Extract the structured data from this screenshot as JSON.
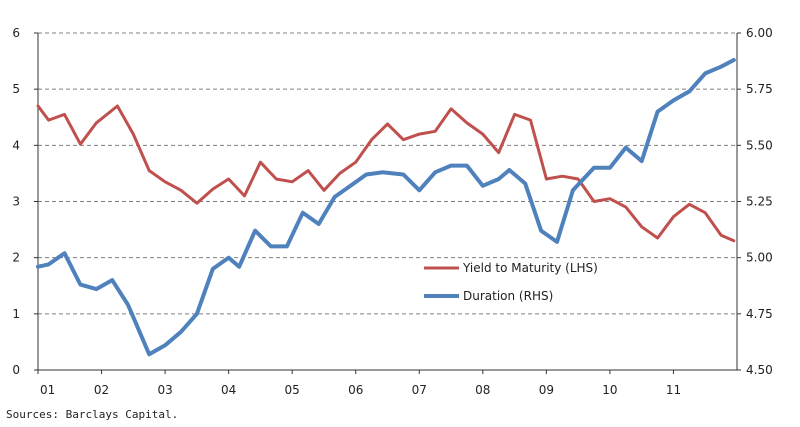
{
  "chart_data": {
    "type": "line",
    "x_ticks": [
      "01",
      "02",
      "03",
      "04",
      "05",
      "06",
      "07",
      "08",
      "09",
      "10",
      "11"
    ],
    "y_left": {
      "ticks": [
        "0",
        "1",
        "2",
        "3",
        "4",
        "5",
        "6"
      ],
      "range": [
        0,
        6
      ]
    },
    "y_right": {
      "ticks": [
        "4.50",
        "4.75",
        "5.00",
        "5.25",
        "5.50",
        "5.75",
        "6.00"
      ],
      "range": [
        4.5,
        6.0
      ]
    },
    "x_range": [
      2001.0,
      2012.0
    ],
    "grid": "horizontal dashed",
    "legend_position": "center-right",
    "series": [
      {
        "name": "Yield to Maturity (LHS)",
        "axis": "left",
        "color": "#c0504d",
        "x": [
          2001.0,
          2001.167,
          2001.417,
          2001.667,
          2001.917,
          2002.25,
          2002.5,
          2002.75,
          2003.0,
          2003.25,
          2003.5,
          2003.75,
          2004.0,
          2004.25,
          2004.5,
          2004.75,
          2005.0,
          2005.25,
          2005.5,
          2005.75,
          2006.0,
          2006.25,
          2006.5,
          2006.75,
          2007.0,
          2007.25,
          2007.5,
          2007.75,
          2008.0,
          2008.25,
          2008.5,
          2008.75,
          2009.0,
          2009.25,
          2009.5,
          2009.75,
          2010.0,
          2010.25,
          2010.5,
          2010.75,
          2011.0,
          2011.25,
          2011.5,
          2011.75,
          2011.95
        ],
        "values": [
          4.7,
          4.45,
          4.55,
          4.02,
          4.4,
          4.7,
          4.2,
          3.55,
          3.35,
          3.2,
          2.97,
          3.22,
          3.4,
          3.1,
          3.7,
          3.4,
          3.35,
          3.55,
          3.2,
          3.5,
          3.7,
          4.1,
          4.38,
          4.1,
          4.2,
          4.25,
          4.65,
          4.4,
          4.2,
          3.87,
          4.55,
          4.45,
          3.4,
          3.45,
          3.4,
          3.0,
          3.05,
          2.9,
          2.55,
          2.35,
          2.73,
          2.95,
          2.8,
          2.4,
          2.3
        ]
      },
      {
        "name": "Duration (RHS)",
        "axis": "right",
        "color": "#4f81bd",
        "x": [
          2001.0,
          2001.167,
          2001.417,
          2001.667,
          2001.917,
          2002.167,
          2002.417,
          2002.75,
          2003.0,
          2003.25,
          2003.5,
          2003.75,
          2004.0,
          2004.167,
          2004.417,
          2004.667,
          2004.917,
          2005.167,
          2005.417,
          2005.667,
          2005.917,
          2006.167,
          2006.417,
          2006.75,
          2007.0,
          2007.25,
          2007.5,
          2007.75,
          2008.0,
          2008.25,
          2008.417,
          2008.667,
          2008.917,
          2009.167,
          2009.417,
          2009.75,
          2010.0,
          2010.25,
          2010.5,
          2010.75,
          2011.0,
          2011.25,
          2011.5,
          2011.75,
          2011.95
        ],
        "values": [
          4.96,
          4.97,
          5.02,
          4.88,
          4.86,
          4.9,
          4.79,
          4.57,
          4.61,
          4.67,
          4.75,
          4.95,
          5.0,
          4.96,
          5.12,
          5.05,
          5.05,
          5.2,
          5.15,
          5.27,
          5.32,
          5.37,
          5.38,
          5.37,
          5.3,
          5.38,
          5.41,
          5.41,
          5.32,
          5.35,
          5.39,
          5.33,
          5.12,
          5.07,
          5.3,
          5.4,
          5.4,
          5.49,
          5.43,
          5.65,
          5.7,
          5.74,
          5.82,
          5.85,
          5.88
        ]
      }
    ]
  },
  "footer": {
    "source": "Sources:  Barclays Capital."
  }
}
